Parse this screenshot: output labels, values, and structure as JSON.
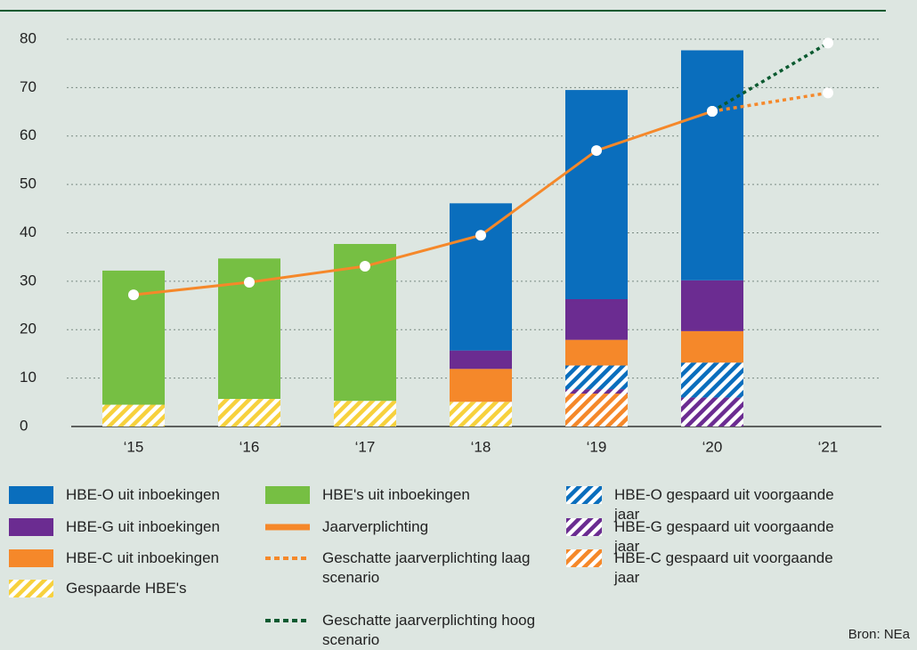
{
  "chart_data": {
    "type": "stacked_bar_line",
    "categories": [
      "‘15",
      "‘16",
      "‘17",
      "‘18",
      "‘19",
      "‘20",
      "‘21"
    ],
    "series": [
      {
        "name": "HBE-O uit inboekingen",
        "kind": "bar",
        "color": "#0a6ebd",
        "values": [
          null,
          null,
          null,
          30.4,
          43.2,
          47.5,
          null
        ]
      },
      {
        "name": "HBE-G uit inboekingen",
        "kind": "bar",
        "color": "#6b2c91",
        "values": [
          null,
          null,
          null,
          3.8,
          8.4,
          10.5,
          null
        ]
      },
      {
        "name": "HBE-C uit inboekingen",
        "kind": "bar",
        "color": "#f5882a",
        "values": [
          null,
          null,
          null,
          6.8,
          5.3,
          6.5,
          null
        ]
      },
      {
        "name": "Gespaarde HBE's",
        "kind": "bar",
        "hatched": true,
        "color": "#f7d13d",
        "values": [
          4.5,
          5.7,
          5.3,
          5.1,
          null,
          null,
          null
        ]
      },
      {
        "name": "HBE's uit inboekingen",
        "kind": "bar",
        "color": "#76bf43",
        "values": [
          27.7,
          29.0,
          32.4,
          null,
          null,
          null,
          null
        ]
      },
      {
        "name": "Jaarverplichting",
        "kind": "line",
        "dash": "solid",
        "color": "#f5882a",
        "values": [
          27.2,
          29.8,
          33.1,
          39.5,
          57.0,
          65.1,
          null
        ]
      },
      {
        "name": "Geschatte jaarverplichting laag scenario",
        "kind": "line",
        "dash": "dotted",
        "color": "#f5882a",
        "values": [
          null,
          null,
          null,
          null,
          null,
          65.1,
          68.9
        ]
      },
      {
        "name": "Geschatte jaarverplichting hoog scenario",
        "kind": "line",
        "dash": "dotted",
        "color": "#0b5a30",
        "values": [
          null,
          null,
          null,
          null,
          null,
          65.1,
          79.2
        ]
      },
      {
        "name": "HBE-O gespaard uit voorgaande jaar",
        "kind": "bar",
        "hatched": true,
        "color": "#0a6ebd",
        "values": [
          null,
          null,
          null,
          null,
          4.9,
          7.2,
          null
        ]
      },
      {
        "name": "HBE-G gespaard uit voorgaande jaar",
        "kind": "bar",
        "hatched": true,
        "color": "#6b2c91",
        "values": [
          null,
          null,
          null,
          null,
          0.9,
          6.0,
          null
        ]
      },
      {
        "name": "HBE-C gespaard uit voorgaande jaar",
        "kind": "bar",
        "hatched": true,
        "color": "#f5882a",
        "values": [
          null,
          null,
          null,
          null,
          6.8,
          null,
          null
        ]
      }
    ],
    "ylim": [
      0,
      80
    ],
    "yticks": [
      0,
      10,
      20,
      30,
      40,
      50,
      60,
      70,
      80
    ],
    "grid": true,
    "source": "Bron: NEa"
  }
}
